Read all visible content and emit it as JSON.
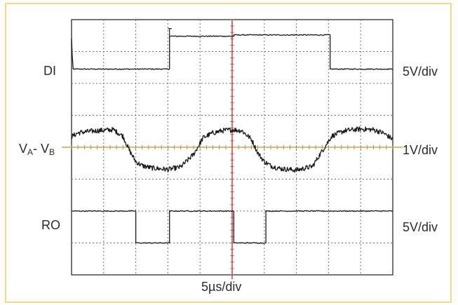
{
  "chart_data": {
    "type": "line",
    "title": "",
    "xlabel": "5µs/div",
    "grid": true,
    "divisions": {
      "x": 10,
      "y": 8
    },
    "series": [
      {
        "name": "DI",
        "scale": "5V/div",
        "x_div": [
          0.0,
          0.02,
          0.05,
          1.05,
          1.05,
          3.05,
          3.05,
          4.05,
          4.05,
          5.05,
          5.05,
          6.05,
          6.05,
          8.05,
          8.05,
          9.05,
          9.05,
          10.0
        ],
        "y_div": [
          7.4,
          6.9,
          6.45,
          6.45,
          6.45,
          6.45,
          7.48,
          7.48,
          7.48,
          7.48,
          7.52,
          7.52,
          7.52,
          7.52,
          6.45,
          6.45,
          6.45,
          6.45
        ]
      },
      {
        "name": "VA-VB",
        "scale": "1V/div",
        "x_div": [
          0.0,
          0.2,
          0.4,
          0.8,
          1.3,
          1.6,
          1.8,
          2.0,
          2.2,
          2.5,
          3.0,
          3.4,
          3.8,
          4.1,
          4.4,
          4.7,
          5.0,
          5.3,
          5.6,
          5.8,
          6.0,
          6.2,
          6.5,
          7.0,
          7.5,
          7.8,
          8.1,
          8.5,
          9.0,
          9.4,
          9.7,
          10.0
        ],
        "y_div": [
          4.33,
          4.45,
          4.48,
          4.52,
          4.55,
          4.35,
          3.9,
          3.55,
          3.42,
          3.35,
          3.3,
          3.38,
          3.78,
          4.3,
          4.45,
          4.52,
          4.55,
          4.52,
          4.25,
          3.82,
          3.55,
          3.42,
          3.33,
          3.28,
          3.4,
          3.88,
          4.35,
          4.52,
          4.57,
          4.55,
          4.45,
          4.25
        ]
      },
      {
        "name": "RO",
        "scale": "5V/div",
        "x_div": [
          0.0,
          1.0,
          1.0,
          2.0,
          2.0,
          3.05,
          3.05,
          5.05,
          5.05,
          6.05,
          6.05,
          8.05,
          8.05,
          9.05,
          9.05,
          10.0
        ],
        "y_div": [
          2.0,
          2.0,
          2.0,
          2.0,
          1.0,
          1.0,
          2.0,
          2.0,
          1.0,
          1.0,
          2.0,
          2.0,
          2.0,
          2.0,
          2.0,
          2.0
        ]
      }
    ],
    "channel_labels": {
      "di": "DI",
      "va": "V",
      "va_sub": "A",
      "dash": "- V",
      "vb_sub": "B",
      "ro": "RO"
    },
    "scale_labels": {
      "top": "5V/div",
      "middle": "1V/div",
      "bottom": "5V/div"
    },
    "colors": {
      "grid": "#6f6f6f",
      "trace": "#1a1a1a",
      "center_vertical": "#d32b2b",
      "center_horizontal": "#e0a040",
      "frame": "#f0d98a"
    }
  }
}
